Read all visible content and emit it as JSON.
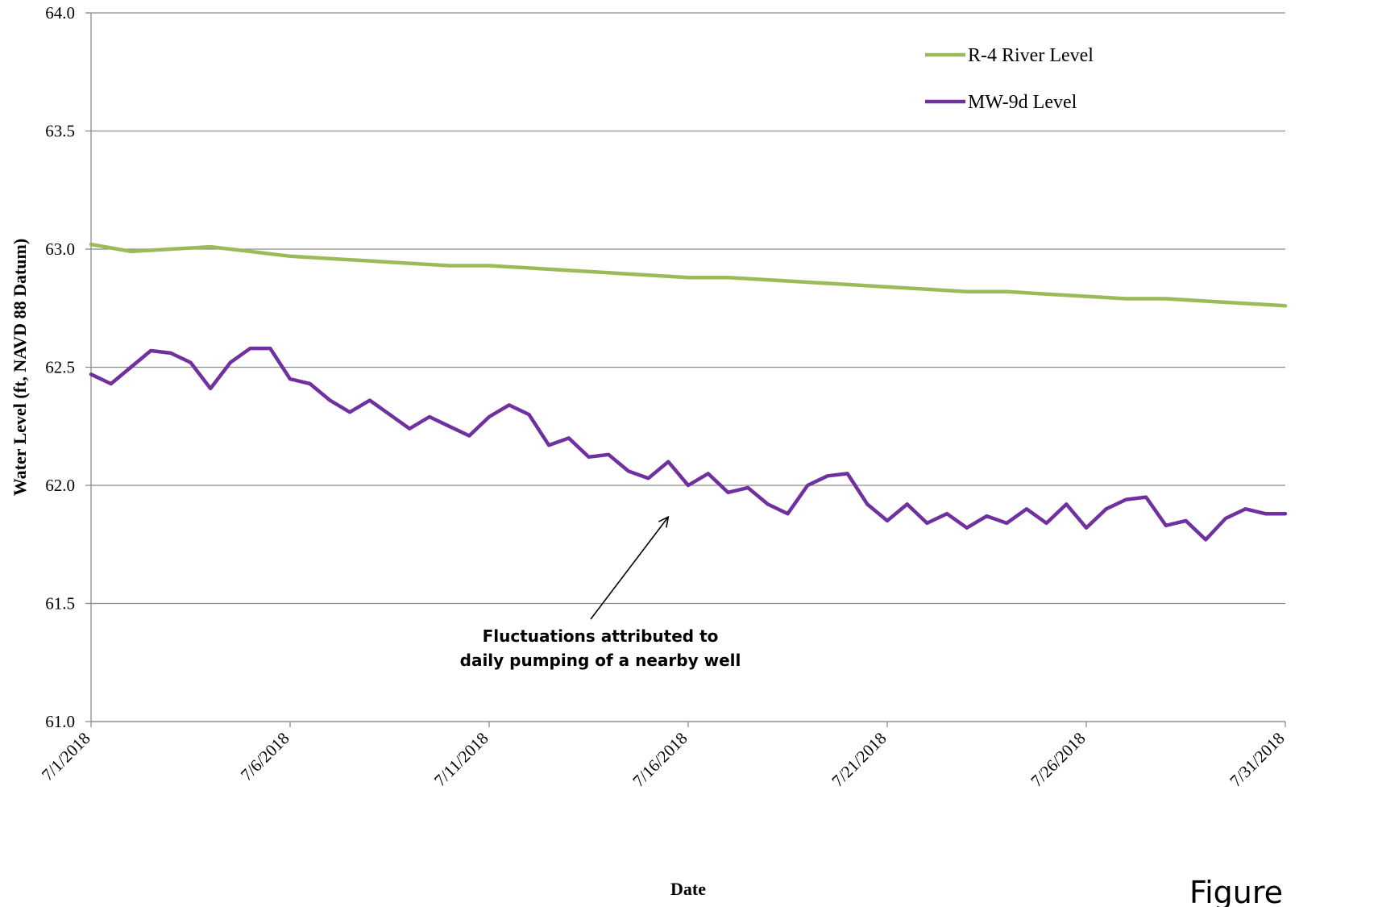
{
  "chart_data": {
    "type": "line",
    "xlabel": "Date",
    "ylabel": "Water Level (ft, NAVD 88 Datum)",
    "ylim": [
      61.0,
      64.0
    ],
    "y_ticks": [
      "61.0",
      "61.5",
      "62.0",
      "62.5",
      "63.0",
      "63.5",
      "64.0"
    ],
    "x_range": [
      "7/1/2018",
      "7/31/2018"
    ],
    "x_ticks": [
      "7/1/2018",
      "7/6/2018",
      "7/11/2018",
      "7/16/2018",
      "7/21/2018",
      "7/26/2018",
      "7/31/2018"
    ],
    "grid": "horizontal",
    "legend_position": "top-right",
    "series": [
      {
        "name": "R-4 River Level",
        "color": "#9bbb59",
        "x": [
          "7/1/2018",
          "7/2/2018",
          "7/3/2018",
          "7/4/2018",
          "7/5/2018",
          "7/6/2018",
          "7/7/2018",
          "7/8/2018",
          "7/9/2018",
          "7/10/2018",
          "7/11/2018",
          "7/12/2018",
          "7/13/2018",
          "7/14/2018",
          "7/15/2018",
          "7/16/2018",
          "7/17/2018",
          "7/18/2018",
          "7/19/2018",
          "7/20/2018",
          "7/21/2018",
          "7/22/2018",
          "7/23/2018",
          "7/24/2018",
          "7/25/2018",
          "7/26/2018",
          "7/27/2018",
          "7/28/2018",
          "7/29/2018",
          "7/30/2018",
          "7/31/2018"
        ],
        "values": [
          63.02,
          62.99,
          63.0,
          63.01,
          62.99,
          62.97,
          62.96,
          62.95,
          62.94,
          62.93,
          62.93,
          62.92,
          62.91,
          62.9,
          62.89,
          62.88,
          62.88,
          62.87,
          62.86,
          62.85,
          62.84,
          62.83,
          62.82,
          62.82,
          62.81,
          62.8,
          62.79,
          62.79,
          62.78,
          62.77,
          62.76
        ]
      },
      {
        "name": "MW-9d Level",
        "color": "#7030a0",
        "x": [
          "7/1/2018",
          "7/1/2018 12:00",
          "7/2/2018",
          "7/2/2018 12:00",
          "7/3/2018",
          "7/3/2018 12:00",
          "7/4/2018",
          "7/4/2018 12:00",
          "7/5/2018",
          "7/5/2018 12:00",
          "7/6/2018",
          "7/6/2018 12:00",
          "7/7/2018",
          "7/7/2018 12:00",
          "7/8/2018",
          "7/8/2018 12:00",
          "7/9/2018",
          "7/9/2018 12:00",
          "7/10/2018",
          "7/10/2018 12:00",
          "7/11/2018",
          "7/11/2018 12:00",
          "7/12/2018",
          "7/12/2018 12:00",
          "7/13/2018",
          "7/13/2018 12:00",
          "7/14/2018",
          "7/14/2018 12:00",
          "7/15/2018",
          "7/15/2018 12:00",
          "7/16/2018",
          "7/16/2018 12:00",
          "7/17/2018",
          "7/17/2018 12:00",
          "7/18/2018",
          "7/18/2018 12:00",
          "7/19/2018",
          "7/19/2018 12:00",
          "7/20/2018",
          "7/20/2018 12:00",
          "7/21/2018",
          "7/21/2018 12:00",
          "7/22/2018",
          "7/22/2018 12:00",
          "7/23/2018",
          "7/23/2018 12:00",
          "7/24/2018",
          "7/24/2018 12:00",
          "7/25/2018",
          "7/25/2018 12:00",
          "7/26/2018",
          "7/26/2018 12:00",
          "7/27/2018",
          "7/27/2018 12:00",
          "7/28/2018",
          "7/28/2018 12:00",
          "7/29/2018",
          "7/29/2018 12:00",
          "7/30/2018",
          "7/30/2018 12:00",
          "7/31/2018"
        ],
        "values": [
          62.47,
          62.43,
          62.5,
          62.57,
          62.56,
          62.52,
          62.41,
          62.52,
          62.58,
          62.58,
          62.45,
          62.43,
          62.36,
          62.31,
          62.36,
          62.3,
          62.24,
          62.29,
          62.25,
          62.21,
          62.29,
          62.34,
          62.3,
          62.17,
          62.2,
          62.12,
          62.13,
          62.06,
          62.03,
          62.1,
          62.0,
          62.05,
          61.97,
          61.99,
          61.92,
          61.88,
          62.0,
          62.04,
          62.05,
          61.92,
          61.85,
          61.92,
          61.84,
          61.88,
          61.82,
          61.87,
          61.84,
          61.9,
          61.84,
          61.92,
          61.82,
          61.9,
          61.94,
          61.95,
          61.83,
          61.85,
          61.77,
          61.86,
          61.9,
          61.88,
          61.88
        ]
      }
    ],
    "annotation": {
      "lines": [
        "Fluctuations attributed to",
        "daily pumping of a nearby well"
      ],
      "arrow_target": {
        "x": "7/15/2018 12:00",
        "y": 61.88
      }
    }
  },
  "figure_label": "Figure"
}
